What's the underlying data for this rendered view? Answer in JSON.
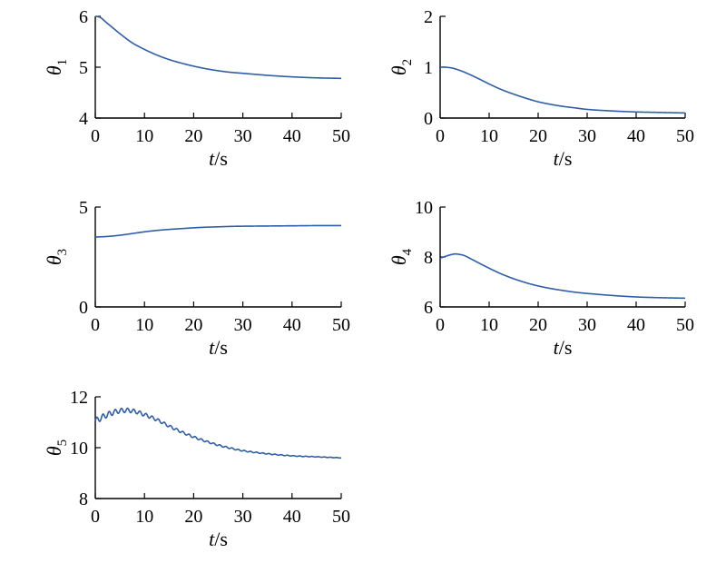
{
  "chart_data": [
    {
      "type": "line",
      "ylabel_base": "θ",
      "ylabel_sub": "1",
      "xlabel_var": "t",
      "xlabel_unit": "/s",
      "xlim": [
        0,
        50
      ],
      "ylim": [
        4,
        6
      ],
      "xticks": [
        "0",
        "10",
        "20",
        "30",
        "40",
        "50"
      ],
      "yticks": [
        "4",
        "5",
        "6"
      ],
      "color": "#2f5ea8",
      "x": [
        0,
        1,
        2,
        3,
        5,
        7.5,
        10,
        12.5,
        15,
        17.5,
        20,
        22.5,
        25,
        27.5,
        30,
        35,
        40,
        45,
        50
      ],
      "y": [
        6.0,
        5.98,
        5.9,
        5.82,
        5.66,
        5.48,
        5.35,
        5.24,
        5.15,
        5.08,
        5.02,
        4.97,
        4.93,
        4.9,
        4.88,
        4.84,
        4.81,
        4.79,
        4.78
      ]
    },
    {
      "type": "line",
      "ylabel_base": "θ",
      "ylabel_sub": "2",
      "xlabel_var": "t",
      "xlabel_unit": "/s",
      "xlim": [
        0,
        50
      ],
      "ylim": [
        0,
        2
      ],
      "xticks": [
        "0",
        "10",
        "20",
        "30",
        "40",
        "50"
      ],
      "yticks": [
        "0",
        "1",
        "2"
      ],
      "color": "#2f5ea8",
      "x": [
        0,
        1,
        2,
        3,
        5,
        7.5,
        10,
        12.5,
        15,
        17.5,
        20,
        22.5,
        25,
        27.5,
        30,
        35,
        40,
        45,
        50
      ],
      "y": [
        1.0,
        1.0,
        0.99,
        0.97,
        0.9,
        0.79,
        0.67,
        0.56,
        0.47,
        0.39,
        0.32,
        0.27,
        0.23,
        0.2,
        0.17,
        0.14,
        0.12,
        0.11,
        0.1
      ]
    },
    {
      "type": "line",
      "ylabel_base": "θ",
      "ylabel_sub": "3",
      "xlabel_var": "t",
      "xlabel_unit": "/s",
      "xlim": [
        0,
        50
      ],
      "ylim": [
        0,
        5
      ],
      "xticks": [
        "0",
        "10",
        "20",
        "30",
        "40",
        "50"
      ],
      "yticks": [
        "0",
        "5"
      ],
      "color": "#2f5ea8",
      "x": [
        0,
        2,
        4,
        6,
        8,
        10,
        12.5,
        15,
        17.5,
        20,
        22.5,
        25,
        27.5,
        30,
        35,
        40,
        45,
        50
      ],
      "y": [
        3.5,
        3.52,
        3.56,
        3.62,
        3.69,
        3.76,
        3.83,
        3.88,
        3.92,
        3.96,
        3.99,
        4.01,
        4.03,
        4.04,
        4.05,
        4.06,
        4.07,
        4.07
      ]
    },
    {
      "type": "line",
      "ylabel_base": "θ",
      "ylabel_sub": "4",
      "xlabel_var": "t",
      "xlabel_unit": "/s",
      "xlim": [
        0,
        50
      ],
      "ylim": [
        6,
        10
      ],
      "xticks": [
        "0",
        "10",
        "20",
        "30",
        "40",
        "50"
      ],
      "yticks": [
        "6",
        "8",
        "10"
      ],
      "color": "#2f5ea8",
      "x": [
        0,
        1,
        2,
        3,
        4,
        5,
        7.5,
        10,
        12.5,
        15,
        17.5,
        20,
        22.5,
        25,
        27.5,
        30,
        35,
        40,
        45,
        50
      ],
      "y": [
        7.95,
        8.02,
        8.08,
        8.12,
        8.1,
        8.05,
        7.8,
        7.55,
        7.32,
        7.13,
        6.97,
        6.84,
        6.74,
        6.66,
        6.59,
        6.54,
        6.46,
        6.4,
        6.37,
        6.35
      ]
    },
    {
      "type": "line",
      "ylabel_base": "θ",
      "ylabel_sub": "5",
      "xlabel_var": "t",
      "xlabel_unit": "/s",
      "xlim": [
        0,
        50
      ],
      "ylim": [
        8,
        12
      ],
      "xticks": [
        "0",
        "10",
        "20",
        "30",
        "40",
        "50"
      ],
      "yticks": [
        "8",
        "10",
        "12"
      ],
      "color": "#2f5ea8",
      "x": [
        0,
        2.5,
        5,
        7.5,
        10,
        12.5,
        15,
        17.5,
        20,
        22.5,
        25,
        27.5,
        30,
        35,
        40,
        45,
        50
      ],
      "y": [
        11.05,
        11.3,
        11.45,
        11.45,
        11.3,
        11.1,
        10.85,
        10.62,
        10.42,
        10.25,
        10.1,
        9.98,
        9.88,
        9.76,
        9.68,
        9.64,
        9.6
      ],
      "oscillation_amplitude": 0.12
    }
  ]
}
